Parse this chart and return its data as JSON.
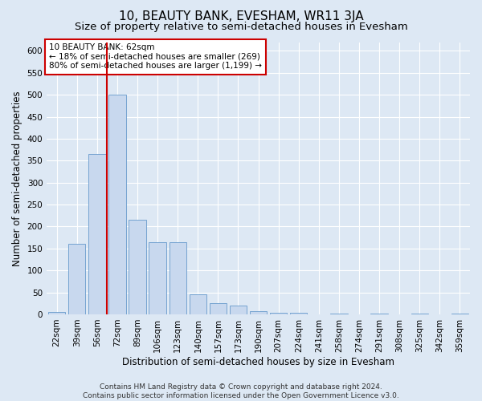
{
  "title": "10, BEAUTY BANK, EVESHAM, WR11 3JA",
  "subtitle": "Size of property relative to semi-detached houses in Evesham",
  "xlabel": "Distribution of semi-detached houses by size in Evesham",
  "ylabel": "Number of semi-detached properties",
  "footer_line1": "Contains HM Land Registry data © Crown copyright and database right 2024.",
  "footer_line2": "Contains public sector information licensed under the Open Government Licence v3.0.",
  "annotation_title": "10 BEAUTY BANK: 62sqm",
  "annotation_line1": "← 18% of semi-detached houses are smaller (269)",
  "annotation_line2": "80% of semi-detached houses are larger (1,199) →",
  "bar_categories": [
    "22sqm",
    "39sqm",
    "56sqm",
    "72sqm",
    "89sqm",
    "106sqm",
    "123sqm",
    "140sqm",
    "157sqm",
    "173sqm",
    "190sqm",
    "207sqm",
    "224sqm",
    "241sqm",
    "258sqm",
    "274sqm",
    "291sqm",
    "308sqm",
    "325sqm",
    "342sqm",
    "359sqm"
  ],
  "bar_values": [
    5,
    160,
    365,
    500,
    215,
    165,
    165,
    45,
    25,
    20,
    7,
    4,
    3,
    0,
    2,
    0,
    1,
    0,
    1,
    0,
    1
  ],
  "bar_color": "#c8d8ee",
  "bar_edge_color": "#6699cc",
  "highlight_line_color": "#cc0000",
  "red_line_x": 2.5,
  "ylim": [
    0,
    620
  ],
  "yticks": [
    0,
    50,
    100,
    150,
    200,
    250,
    300,
    350,
    400,
    450,
    500,
    550,
    600
  ],
  "background_color": "#dde8f4",
  "plot_background_color": "#dde8f4",
  "grid_color": "#ffffff",
  "title_fontsize": 11,
  "subtitle_fontsize": 9.5,
  "axis_label_fontsize": 8.5,
  "tick_fontsize": 7.5,
  "annotation_fontsize": 7.5,
  "footer_fontsize": 6.5
}
